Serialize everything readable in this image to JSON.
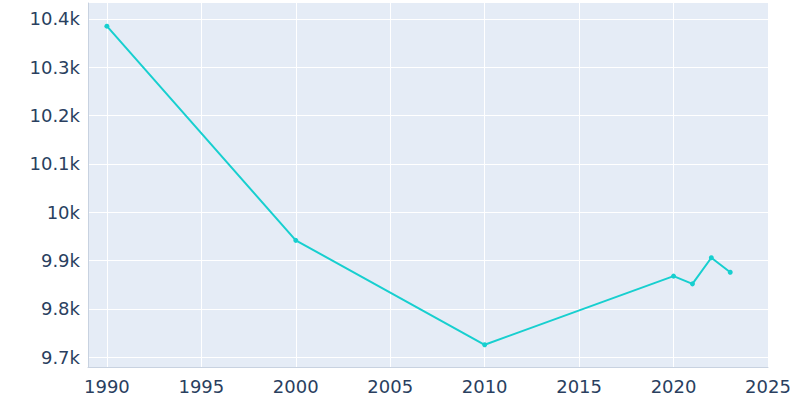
{
  "chart_data": {
    "type": "line",
    "x": [
      1990,
      2000,
      2010,
      2020,
      2021,
      2022,
      2023
    ],
    "values": [
      10385,
      9942,
      9726,
      9868,
      9852,
      9906,
      9876
    ],
    "color": "#17cfcf",
    "marker": "circle",
    "xlim": [
      1989,
      2025
    ],
    "xticks": [
      1990,
      1995,
      2000,
      2005,
      2010,
      2015,
      2020,
      2025
    ],
    "ylim": [
      9680,
      10433
    ],
    "yticks": [
      {
        "value": 9700,
        "label": "9.7k"
      },
      {
        "value": 9800,
        "label": "9.8k"
      },
      {
        "value": 9900,
        "label": "9.9k"
      },
      {
        "value": 10000,
        "label": "10k"
      },
      {
        "value": 10100,
        "label": "10.1k"
      },
      {
        "value": 10200,
        "label": "10.2k"
      },
      {
        "value": 10300,
        "label": "10.3k"
      },
      {
        "value": 10400,
        "label": "10.4k"
      }
    ],
    "grid": true
  }
}
